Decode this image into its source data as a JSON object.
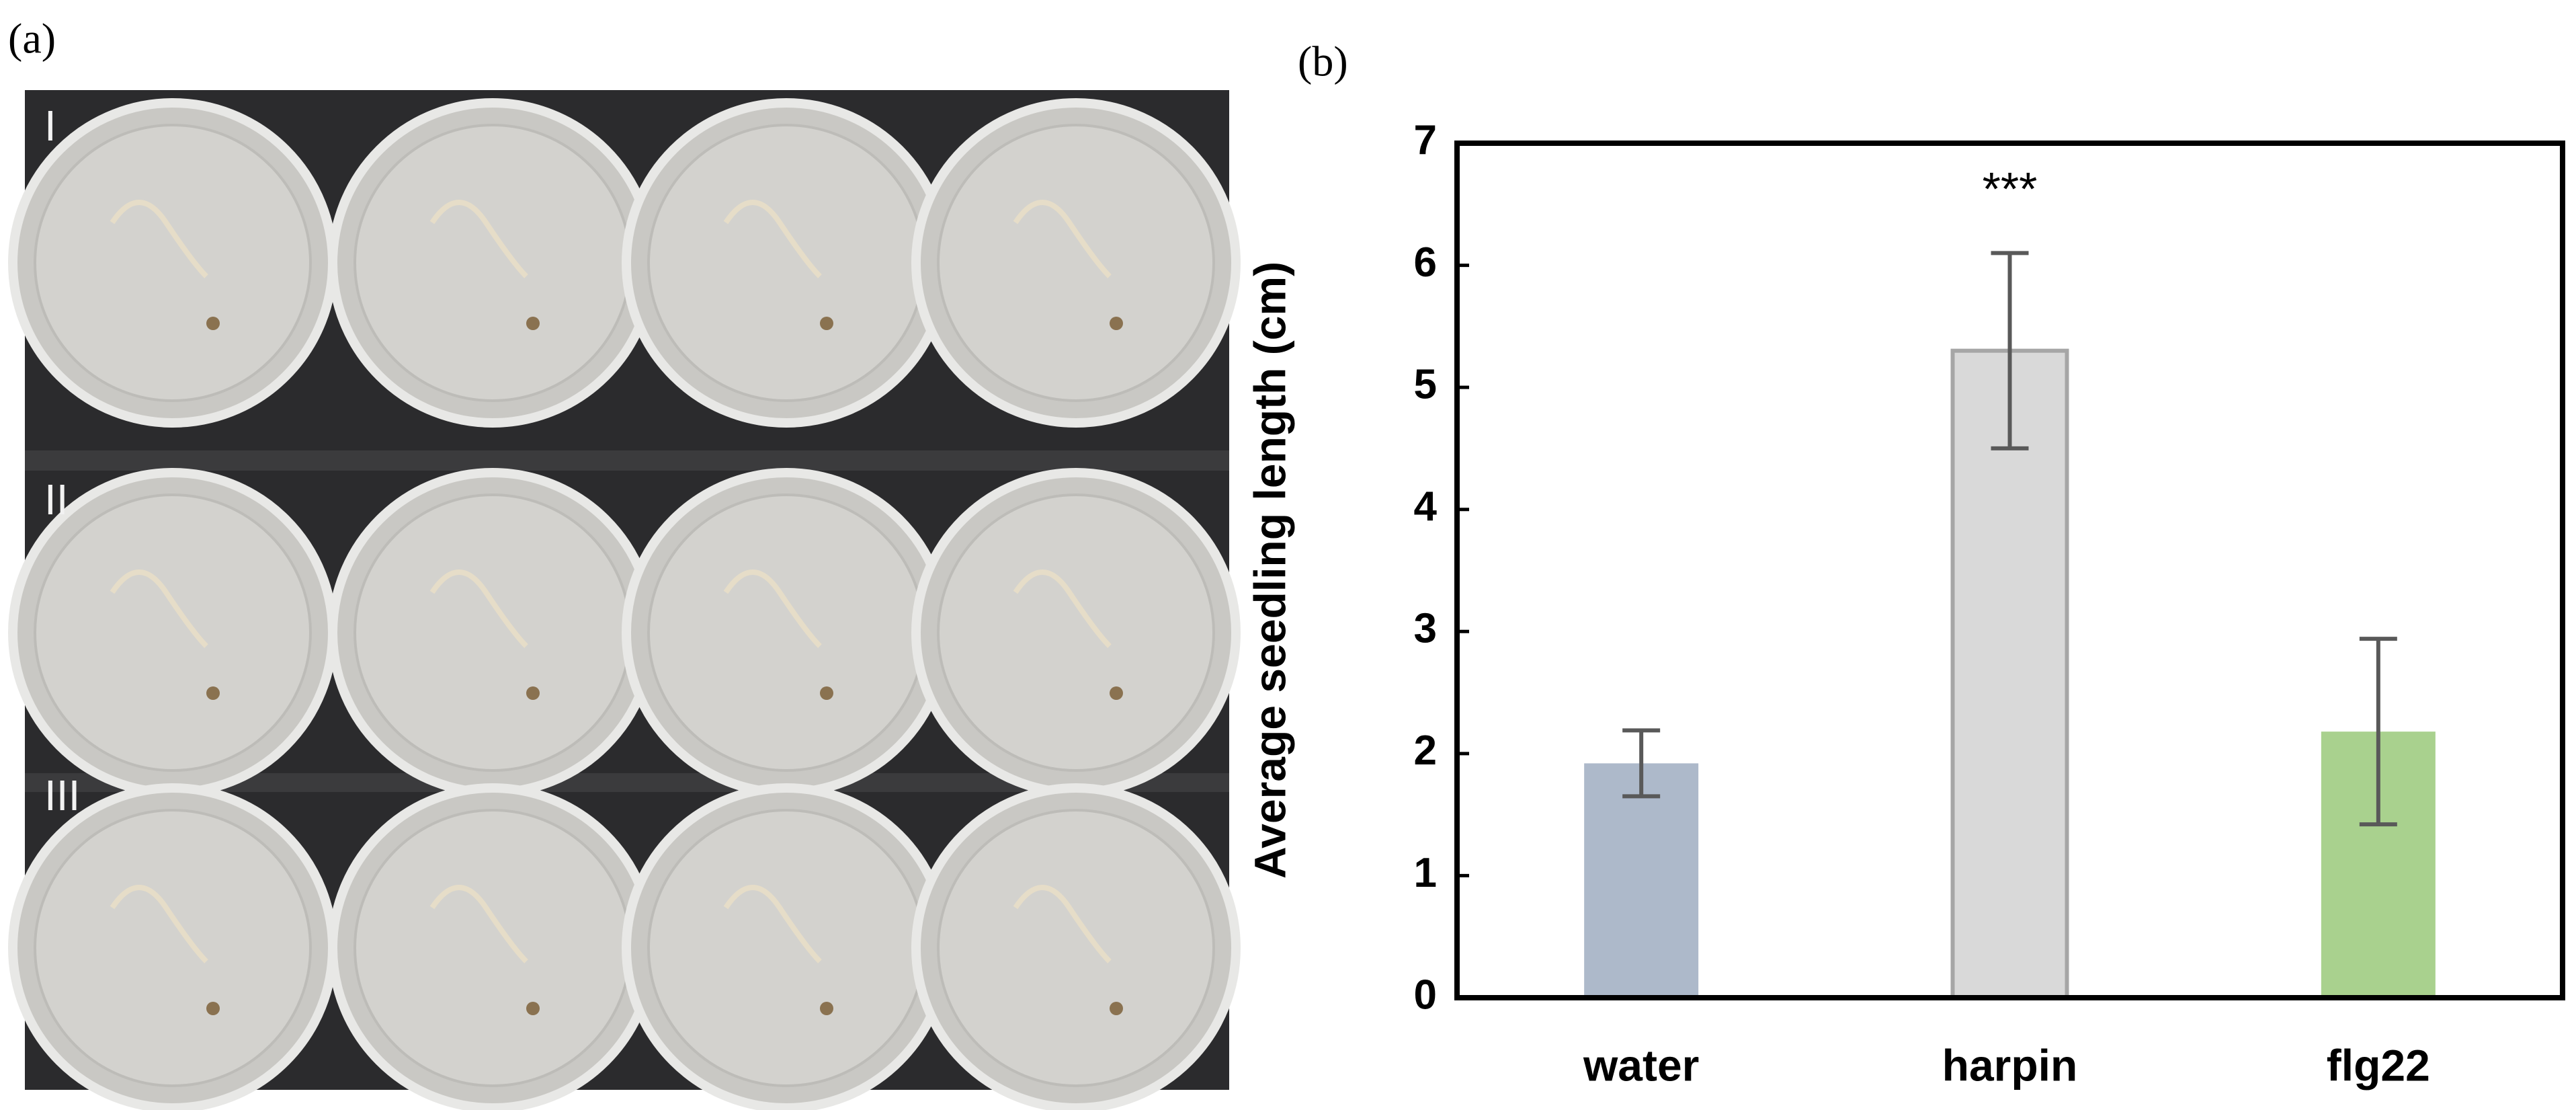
{
  "panel_a": {
    "label": "(a)",
    "rows": [
      "I",
      "II",
      "III"
    ]
  },
  "chart_data": {
    "type": "bar",
    "panel_label": "(b)",
    "y_label": "Average seedling length (cm)",
    "categories": [
      "water",
      "harpin",
      "flg22"
    ],
    "values": [
      1.92,
      5.3,
      2.18
    ],
    "errors": [
      0.27,
      0.8,
      0.76
    ],
    "colors": [
      "#adb9ca",
      "#d9d9d9",
      "#a9d18e"
    ],
    "annotation": "***",
    "ylim": [
      0,
      7
    ],
    "yticks": [
      0,
      1,
      2,
      3,
      4,
      5,
      6,
      7
    ]
  }
}
